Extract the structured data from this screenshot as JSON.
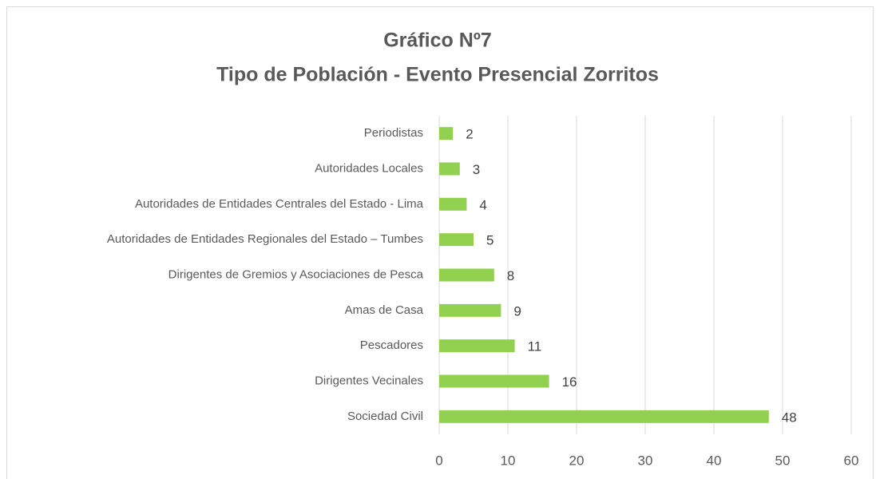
{
  "chart_data": {
    "type": "bar",
    "orientation": "horizontal",
    "title": "Gráfico Nº7",
    "subtitle": "Tipo de Población - Evento Presencial Zorritos",
    "categories": [
      "Periodistas",
      "Autoridades Locales",
      "Autoridades de Entidades Centrales del Estado - Lima",
      "Autoridades de Entidades Regionales del Estado – Tumbes",
      "Dirigentes de Gremios y Asociaciones de Pesca",
      "Amas de Casa",
      "Pescadores",
      "Dirigentes Vecinales",
      "Sociedad Civil"
    ],
    "values": [
      2,
      3,
      4,
      5,
      8,
      9,
      11,
      16,
      48
    ],
    "color": "#92d050",
    "xlim": [
      0,
      60
    ],
    "xticks": [
      0,
      10,
      20,
      30,
      40,
      50,
      60
    ],
    "grid": true
  }
}
